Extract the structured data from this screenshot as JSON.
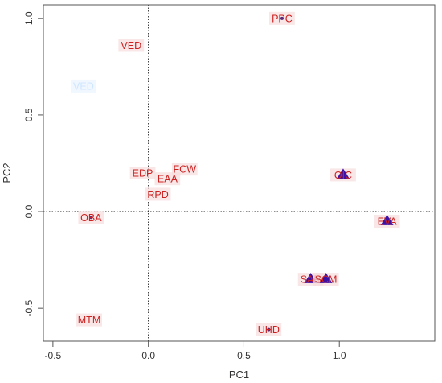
{
  "chart_data": {
    "type": "scatter",
    "title": "",
    "xlabel": "PC1",
    "ylabel": "PC2",
    "xlim": [
      -0.55,
      1.5
    ],
    "ylim": [
      -0.67,
      1.07
    ],
    "xticks": [
      -0.5,
      0.0,
      0.5,
      1.0
    ],
    "xtick_labels": [
      "-0.5",
      "0.0",
      "0.5",
      "1.0"
    ],
    "yticks": [
      -0.5,
      0.0,
      0.5,
      1.0
    ],
    "ytick_labels": [
      "-0.5",
      "0.0",
      "0.5",
      "1.0"
    ],
    "reference_lines": {
      "x": 0,
      "y": 0,
      "style": "dotted"
    },
    "grid": false,
    "legend": "none",
    "colors": {
      "label": "#cc2222",
      "label_bg": "#f7dede",
      "triangle": "#3b12a8",
      "point": "#5a2a7a",
      "frame": "#555555"
    },
    "labels": [
      {
        "text": "PPC",
        "x": 0.7,
        "y": 1.0,
        "marker": "dot"
      },
      {
        "text": "VED",
        "x": -0.09,
        "y": 0.86,
        "marker": "none"
      },
      {
        "text": "VED",
        "x": -0.34,
        "y": 0.65,
        "marker": "none",
        "faded": true
      },
      {
        "text": "EDP",
        "x": -0.03,
        "y": 0.2,
        "marker": "none"
      },
      {
        "text": "EAA",
        "x": 0.1,
        "y": 0.17,
        "marker": "none"
      },
      {
        "text": "FCW",
        "x": 0.19,
        "y": 0.22,
        "marker": "none"
      },
      {
        "text": "RPD",
        "x": 0.05,
        "y": 0.09,
        "marker": "none"
      },
      {
        "text": "OBA",
        "x": -0.3,
        "y": -0.03,
        "marker": "dot"
      },
      {
        "text": "MTM",
        "x": -0.31,
        "y": -0.56,
        "marker": "none"
      },
      {
        "text": "UHD",
        "x": 0.63,
        "y": -0.61,
        "marker": "dot"
      },
      {
        "text": "OIC",
        "x": 1.02,
        "y": 0.19,
        "marker": "triangle"
      },
      {
        "text": "EVA",
        "x": 1.25,
        "y": -0.05,
        "marker": "triangle"
      },
      {
        "text": "SAR",
        "x": 0.85,
        "y": -0.35,
        "marker": "triangle"
      },
      {
        "text": "SCM",
        "x": 0.93,
        "y": -0.35,
        "marker": "triangle"
      }
    ]
  }
}
